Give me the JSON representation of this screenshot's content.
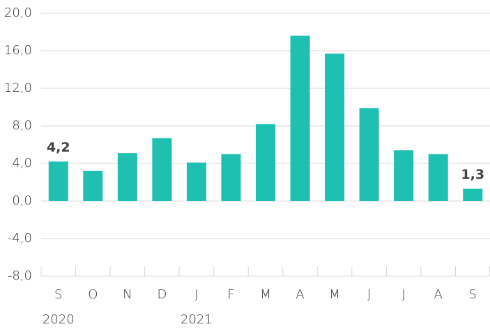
{
  "chart_data": {
    "type": "bar",
    "categories": [
      "S",
      "O",
      "N",
      "D",
      "J",
      "F",
      "M",
      "A",
      "M",
      "J",
      "J",
      "A",
      "S"
    ],
    "year_labels": [
      "2020",
      null,
      null,
      null,
      "2021",
      null,
      null,
      null,
      null,
      null,
      null,
      null,
      null
    ],
    "values": [
      4.2,
      3.2,
      5.1,
      6.7,
      4.1,
      5.0,
      8.2,
      17.6,
      15.7,
      9.9,
      5.4,
      5.0,
      1.3
    ],
    "value_labels": [
      "4,2",
      null,
      null,
      null,
      null,
      null,
      null,
      null,
      null,
      null,
      null,
      null,
      "1,3"
    ],
    "color": "#1fbfb1",
    "ylim": [
      -8,
      20
    ],
    "yticks": [
      {
        "value": -8,
        "label": "-8,0"
      },
      {
        "value": -4,
        "label": "-4,0"
      },
      {
        "value": 0,
        "label": "0,0"
      },
      {
        "value": 4,
        "label": "4,0"
      },
      {
        "value": 8,
        "label": "8,0"
      },
      {
        "value": 12,
        "label": "12,0"
      },
      {
        "value": 16,
        "label": "16,0"
      },
      {
        "value": 20,
        "label": "20,0"
      }
    ],
    "grid": true
  }
}
